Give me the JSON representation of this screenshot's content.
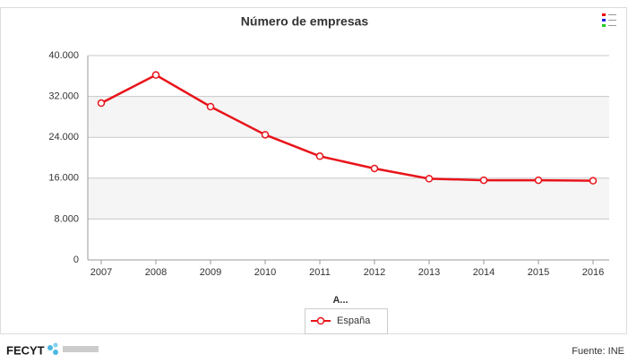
{
  "chart_data": {
    "type": "line",
    "title": "Número de empresas",
    "x_label": "A...",
    "categories": [
      "2007",
      "2008",
      "2009",
      "2010",
      "2011",
      "2012",
      "2013",
      "2014",
      "2015",
      "2016"
    ],
    "series": [
      {
        "name": "España",
        "color": "#e8141b",
        "values": [
          30700,
          36200,
          30000,
          24500,
          20300,
          17900,
          15900,
          15600,
          15600,
          15500
        ]
      }
    ],
    "ylim": [
      0,
      40000
    ],
    "yticks": [
      {
        "value": 0,
        "label": "0"
      },
      {
        "value": 8000,
        "label": "8.000"
      },
      {
        "value": 16000,
        "label": "16.000"
      },
      {
        "value": 24000,
        "label": "24.000"
      },
      {
        "value": 32000,
        "label": "32.000"
      },
      {
        "value": 40000,
        "label": "40.000"
      }
    ],
    "grid": true,
    "legend": "bottom"
  },
  "footer": {
    "logo": "FECYT",
    "source": "Fuente: INE"
  }
}
